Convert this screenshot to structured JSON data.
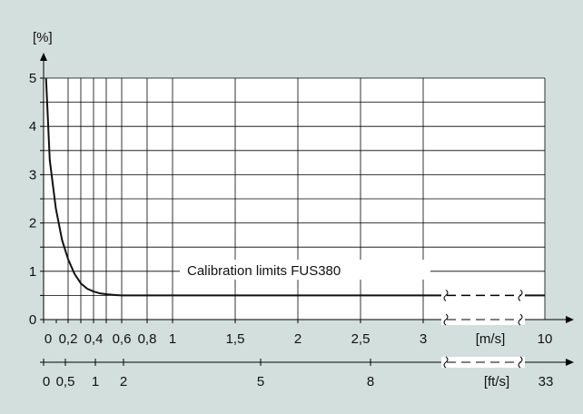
{
  "chart_data": {
    "type": "line",
    "title": "",
    "ylabel": "[%]",
    "ylim": [
      0,
      5
    ],
    "y_ticks": [
      "0",
      "1",
      "2",
      "3",
      "4",
      "5"
    ],
    "x_primary": {
      "unit_label": "[m/s]",
      "ticks": [
        "0",
        "0,2",
        "0,4",
        "0,6",
        "0,8",
        "1",
        "1,5",
        "2",
        "2,5",
        "3"
      ],
      "end_tick": "10"
    },
    "x_secondary": {
      "unit_label": "[ft/s]",
      "ticks": [
        "0",
        "0,5",
        "1",
        "2",
        "5",
        "8"
      ],
      "end_tick": "33"
    },
    "annotation": "Calibration limits FUS380",
    "series": [
      {
        "x": [
          0.02,
          0.05,
          0.1,
          0.15,
          0.2,
          0.25,
          0.3,
          0.35,
          0.4,
          0.45,
          0.5,
          0.55,
          0.6,
          1,
          2,
          3,
          10
        ],
        "y": [
          5,
          3.3,
          2.3,
          1.65,
          1.25,
          0.95,
          0.75,
          0.64,
          0.58,
          0.54,
          0.52,
          0.51,
          0.5,
          0.5,
          0.5,
          0.5,
          0.5
        ]
      }
    ],
    "grid": true,
    "colors": {
      "background": "#d3dfdd",
      "plot": "#ffffff",
      "line": "#111111",
      "grid": "#000000"
    }
  }
}
